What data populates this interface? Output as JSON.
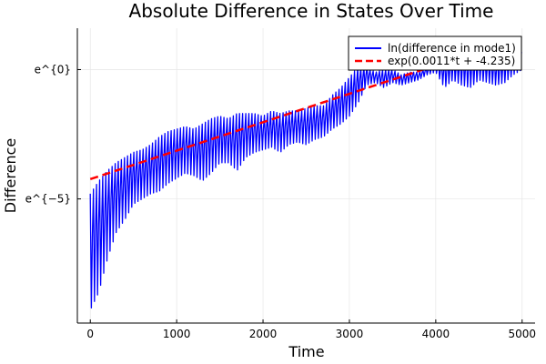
{
  "chart_data": {
    "type": "line",
    "title": "Absolute Difference in States Over Time",
    "xlabel": "Time",
    "ylabel": "Difference",
    "xlim": [
      -150,
      5150
    ],
    "ylim": [
      -9.8,
      1.6
    ],
    "y_scale": "log (natural), tick labels as e^{n}",
    "grid": true,
    "legend_position": "top-right",
    "x_ticks": [
      {
        "value": 0,
        "label": "0"
      },
      {
        "value": 1000,
        "label": "1000"
      },
      {
        "value": 2000,
        "label": "2000"
      },
      {
        "value": 3000,
        "label": "3000"
      },
      {
        "value": 4000,
        "label": "4000"
      },
      {
        "value": 5000,
        "label": "5000"
      }
    ],
    "y_ticks": [
      {
        "value": 0,
        "label": "e^{0}"
      },
      {
        "value": -5,
        "label": "e^{−5}"
      }
    ],
    "series": [
      {
        "name": "ln(difference in mode1)",
        "color": "#0000ff",
        "style": "solid",
        "envelope": {
          "x": [
            0,
            100,
            200,
            300,
            400,
            500,
            600,
            700,
            800,
            900,
            1000,
            1100,
            1200,
            1300,
            1400,
            1500,
            1600,
            1700,
            1800,
            1900,
            2000,
            2100,
            2200,
            2300,
            2400,
            2500,
            2600,
            2700,
            2800,
            2900,
            3000,
            3100,
            3200,
            3300,
            3400,
            3500,
            3600,
            3700,
            3800,
            3900,
            4000,
            4100,
            4200,
            4300,
            4400,
            4500,
            4600,
            4700,
            4800,
            4900,
            5000
          ],
          "upper": [
            -4.8,
            -4.3,
            -3.9,
            -3.6,
            -3.4,
            -3.2,
            -3.1,
            -2.9,
            -2.6,
            -2.4,
            -2.3,
            -2.2,
            -2.3,
            -2.1,
            -1.9,
            -1.8,
            -1.9,
            -1.7,
            -1.7,
            -1.7,
            -1.8,
            -1.6,
            -1.7,
            -1.6,
            -1.6,
            -1.5,
            -1.4,
            -1.4,
            -1.0,
            -0.7,
            -0.3,
            0.1,
            0.1,
            -0.1,
            0.0,
            0.0,
            -0.2,
            -0.1,
            -0.1,
            0.1,
            0.3,
            0.4,
            0.5,
            0.6,
            0.6,
            0.6,
            0.5,
            0.5,
            0.6,
            0.6,
            1.2
          ],
          "lower": [
            -9.3,
            -8.6,
            -7.3,
            -6.3,
            -5.8,
            -5.2,
            -5.0,
            -4.8,
            -4.7,
            -4.4,
            -4.2,
            -4.0,
            -4.1,
            -4.3,
            -4.0,
            -3.6,
            -3.6,
            -3.9,
            -3.4,
            -3.2,
            -3.1,
            -3.0,
            -3.2,
            -2.9,
            -2.8,
            -2.9,
            -2.7,
            -2.6,
            -2.3,
            -2.1,
            -1.8,
            -1.3,
            -0.6,
            -0.5,
            -0.7,
            -0.5,
            -0.6,
            -0.5,
            -0.4,
            -0.2,
            -0.1,
            -0.7,
            -0.4,
            -0.6,
            -0.7,
            -0.4,
            -0.5,
            -0.6,
            -0.5,
            -0.2,
            0.0
          ]
        }
      },
      {
        "name": "exp(0.0011*t + -4.235)",
        "color": "#ff0000",
        "style": "dashed",
        "formula": {
          "slope": 0.0011,
          "intercept": -4.235
        },
        "x": [
          0,
          5000
        ]
      }
    ]
  }
}
